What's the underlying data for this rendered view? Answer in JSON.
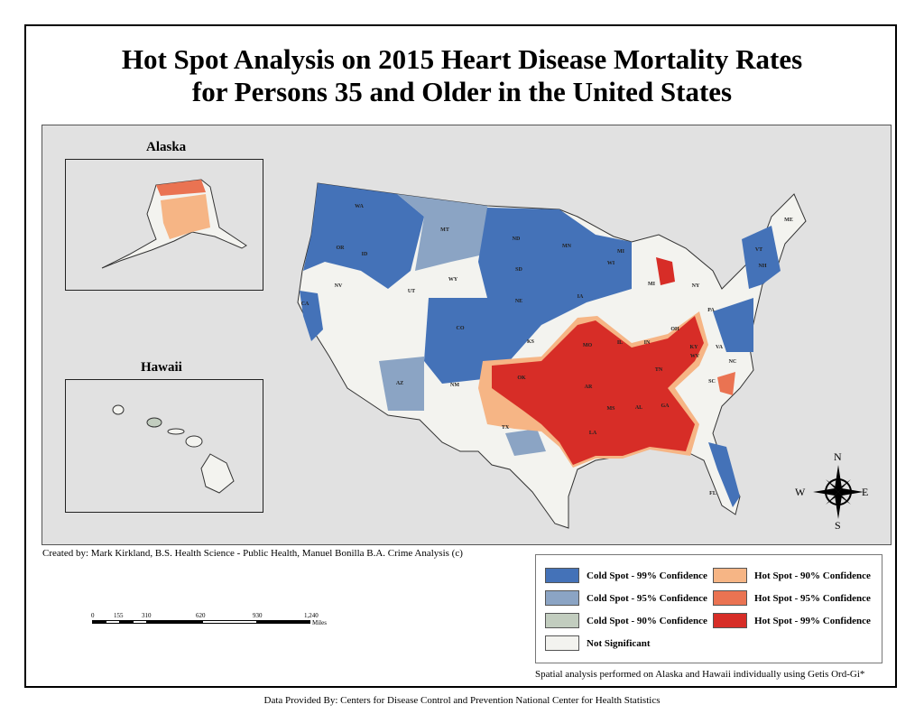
{
  "title": {
    "line1": "Hot Spot Analysis on 2015 Heart Disease Mortality Rates",
    "line2": "for Persons 35 and Older in the United States"
  },
  "insets": {
    "alaska": "Alaska",
    "hawaii": "Hawaii"
  },
  "state_labels": [
    "WA",
    "OR",
    "CA",
    "ID",
    "NV",
    "MT",
    "WY",
    "UT",
    "AZ",
    "CO",
    "NM",
    "ND",
    "SD",
    "NE",
    "KS",
    "OK",
    "TX",
    "MN",
    "IA",
    "MO",
    "AR",
    "LA",
    "WI",
    "IL",
    "MI",
    "MI",
    "IN",
    "OH",
    "KY",
    "TN",
    "MS",
    "AL",
    "GA",
    "FL",
    "SC",
    "NC",
    "VA",
    "WV",
    "PA",
    "NY",
    "VT",
    "NH",
    "ME"
  ],
  "compass": {
    "n": "N",
    "s": "S",
    "e": "E",
    "w": "W"
  },
  "credit": "Created by: Mark Kirkland, B.S. Health Science - Public Health, Manuel Bonilla B.A. Crime Analysis (c)",
  "scale": {
    "ticks": [
      "0",
      "155",
      "310",
      "620",
      "930",
      "1,240"
    ],
    "unit": "Miles"
  },
  "legend": [
    {
      "label": "Cold Spot - 99% Confidence",
      "color": "#4472b8"
    },
    {
      "label": "Cold Spot - 95% Confidence",
      "color": "#8ba4c4"
    },
    {
      "label": "Cold Spot - 90% Confidence",
      "color": "#c2cdbf"
    },
    {
      "label": "Not Significant",
      "color": "#f3f3ef"
    },
    {
      "label": "Hot Spot - 90% Confidence",
      "color": "#f6b585"
    },
    {
      "label": "Hot Spot - 95% Confidence",
      "color": "#ea7352"
    },
    {
      "label": "Hot Spot - 99% Confidence",
      "color": "#d72d27"
    }
  ],
  "note": "Spatial analysis performed on Alaska and Hawaii individually using Getis Ord-Gi*",
  "provider": "Data Provided By: Centers for Disease Control and Prevention National Center for Health Statistics"
}
